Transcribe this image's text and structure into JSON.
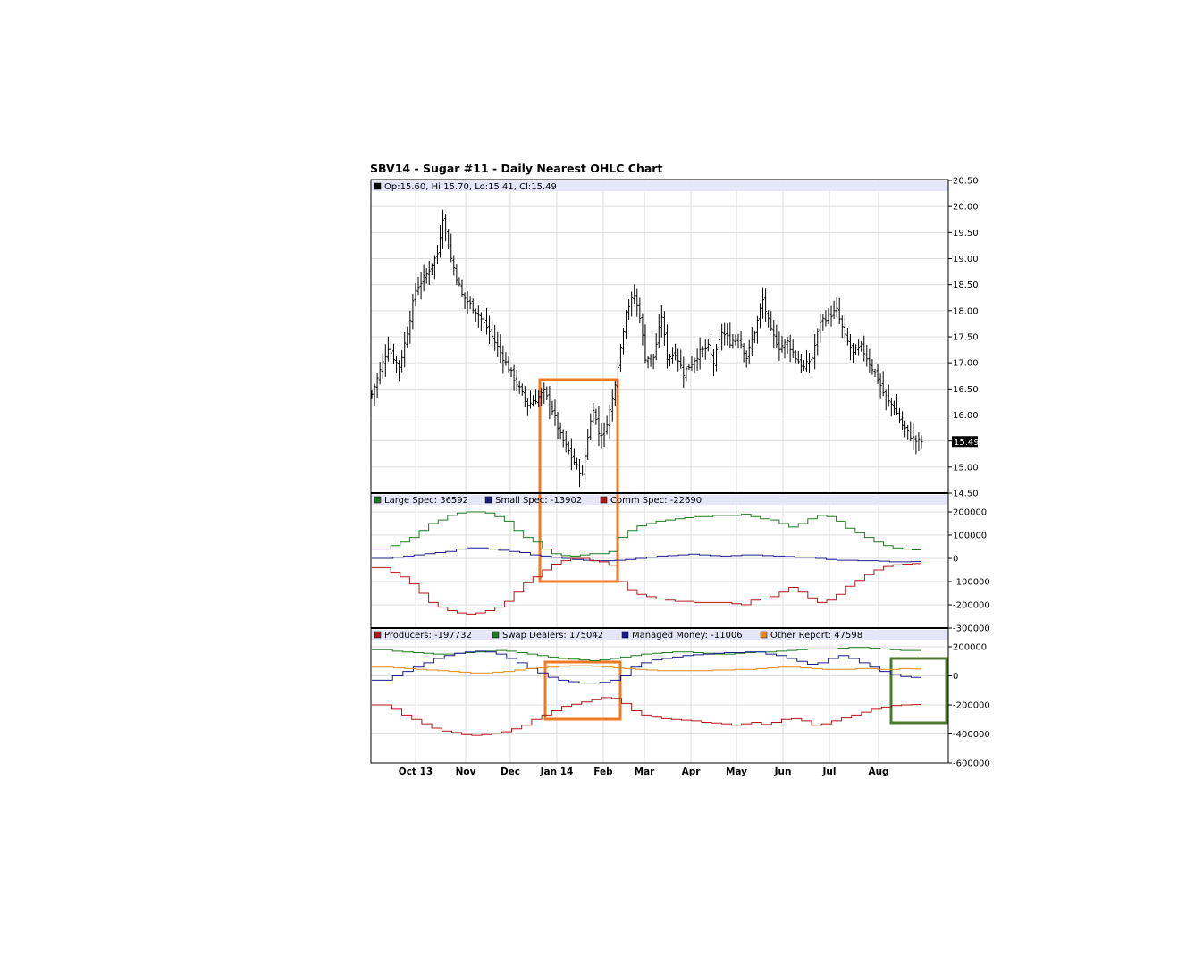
{
  "chart_data": [
    {
      "type": "ohlc",
      "title": "SBV14 - Sugar #11 - Daily Nearest OHLC Chart",
      "legend": [
        {
          "label": "Op:15.60, Hi:15.70, Lo:15.41, Cl:15.49",
          "color": "#000000"
        }
      ],
      "last_value_label": "15.49",
      "y_ticks": [
        "20.50",
        "20.00",
        "19.50",
        "19.00",
        "18.50",
        "18.00",
        "17.50",
        "17.00",
        "16.50",
        "16.00",
        "15.50",
        "15.00",
        "14.50"
      ],
      "ylim": [
        14.5,
        20.5
      ],
      "x_ticks": [
        "Oct 13",
        "Nov",
        "Dec",
        "Jan 14",
        "Feb",
        "Mar",
        "Apr",
        "May",
        "Jun",
        "Jul",
        "Aug"
      ],
      "close_anchors": [
        [
          0,
          16.4
        ],
        [
          6,
          17.3
        ],
        [
          10,
          16.9
        ],
        [
          13,
          17.6
        ],
        [
          16,
          18.4
        ],
        [
          20,
          18.7
        ],
        [
          24,
          19.1
        ],
        [
          26,
          19.8
        ],
        [
          29,
          19.0
        ],
        [
          33,
          18.3
        ],
        [
          38,
          18.0
        ],
        [
          43,
          17.6
        ],
        [
          48,
          17.1
        ],
        [
          53,
          16.6
        ],
        [
          57,
          16.2
        ],
        [
          60,
          16.3
        ],
        [
          63,
          16.45
        ],
        [
          66,
          16.1
        ],
        [
          69,
          15.6
        ],
        [
          72,
          15.3
        ],
        [
          75,
          15.0
        ],
        [
          77,
          14.85
        ],
        [
          79,
          15.6
        ],
        [
          81,
          16.15
        ],
        [
          83,
          15.65
        ],
        [
          85,
          15.65
        ],
        [
          88,
          16.3
        ],
        [
          91,
          17.3
        ],
        [
          93,
          18.0
        ],
        [
          96,
          18.3
        ],
        [
          98,
          17.9
        ],
        [
          100,
          17.1
        ],
        [
          103,
          17.1
        ],
        [
          106,
          17.9
        ],
        [
          108,
          17.1
        ],
        [
          111,
          17.2
        ],
        [
          114,
          16.8
        ],
        [
          117,
          17.0
        ],
        [
          120,
          17.2
        ],
        [
          123,
          17.3
        ],
        [
          125,
          17.0
        ],
        [
          128,
          17.6
        ],
        [
          131,
          17.4
        ],
        [
          134,
          17.5
        ],
        [
          137,
          17.1
        ],
        [
          140,
          17.6
        ],
        [
          143,
          18.2
        ],
        [
          146,
          17.6
        ],
        [
          149,
          17.3
        ],
        [
          152,
          17.4
        ],
        [
          155,
          17.1
        ],
        [
          158,
          16.9
        ],
        [
          161,
          17.1
        ],
        [
          164,
          17.8
        ],
        [
          167,
          17.9
        ],
        [
          170,
          18.0
        ],
        [
          173,
          17.5
        ],
        [
          176,
          17.2
        ],
        [
          179,
          17.3
        ],
        [
          182,
          17.0
        ],
        [
          185,
          16.7
        ],
        [
          188,
          16.3
        ],
        [
          191,
          16.15
        ],
        [
          194,
          15.8
        ],
        [
          197,
          15.6
        ],
        [
          199,
          15.5
        ],
        [
          201,
          15.49
        ]
      ]
    },
    {
      "type": "line",
      "legend": [
        {
          "label": "Large Spec: 36592",
          "color": "#1e7a1e"
        },
        {
          "label": "Small Spec: -13902",
          "color": "#1c1c8a"
        },
        {
          "label": "Comm Spec: -22690",
          "color": "#b01818"
        }
      ],
      "y_ticks": [
        "200000",
        "100000",
        "0",
        "-100000",
        "-200000",
        "-300000"
      ],
      "ylim": [
        -300000,
        200000
      ],
      "series": [
        {
          "name": "Large Spec: 36592",
          "color": "#1e7a1e",
          "values": [
            40000,
            40000,
            55000,
            70000,
            90000,
            120000,
            150000,
            165000,
            185000,
            195000,
            200000,
            200000,
            195000,
            180000,
            160000,
            120000,
            90000,
            70000,
            40000,
            20000,
            12000,
            10000,
            15000,
            20000,
            20000,
            30000,
            90000,
            120000,
            140000,
            150000,
            160000,
            165000,
            170000,
            175000,
            180000,
            180000,
            185000,
            185000,
            185000,
            190000,
            180000,
            170000,
            165000,
            150000,
            135000,
            150000,
            170000,
            185000,
            180000,
            160000,
            130000,
            110000,
            90000,
            70000,
            55000,
            45000,
            40000,
            36592
          ]
        },
        {
          "name": "Small Spec: -13902",
          "color": "#1c1c8a",
          "values": [
            0,
            0,
            5000,
            10000,
            15000,
            20000,
            25000,
            30000,
            40000,
            45000,
            45000,
            40000,
            35000,
            30000,
            25000,
            15000,
            10000,
            5000,
            0,
            -5000,
            -8000,
            -10000,
            -10000,
            -8000,
            -5000,
            0,
            5000,
            10000,
            12000,
            15000,
            18000,
            15000,
            12000,
            10000,
            12000,
            15000,
            15000,
            12000,
            10000,
            8000,
            5000,
            5000,
            0,
            -5000,
            -8000,
            -8000,
            -10000,
            -10000,
            -12000,
            -15000,
            -15000,
            -13902
          ]
        },
        {
          "name": "Comm Spec: -22690",
          "color": "#b01818",
          "values": [
            -40000,
            -40000,
            -60000,
            -80000,
            -110000,
            -150000,
            -190000,
            -210000,
            -225000,
            -235000,
            -240000,
            -235000,
            -225000,
            -210000,
            -185000,
            -145000,
            -105000,
            -80000,
            -50000,
            -25000,
            -10000,
            0,
            0,
            -10000,
            -15000,
            -30000,
            -100000,
            -135000,
            -155000,
            -165000,
            -175000,
            -180000,
            -185000,
            -185000,
            -190000,
            -190000,
            -190000,
            -190000,
            -195000,
            -200000,
            -180000,
            -175000,
            -165000,
            -145000,
            -125000,
            -145000,
            -170000,
            -190000,
            -180000,
            -155000,
            -120000,
            -95000,
            -70000,
            -50000,
            -35000,
            -28000,
            -25000,
            -22690
          ]
        }
      ]
    },
    {
      "type": "line",
      "legend": [
        {
          "label": "Producers: -197732",
          "color": "#b01818"
        },
        {
          "label": "Swap Dealers: 175042",
          "color": "#1e7a1e"
        },
        {
          "label": "Managed Money: -11006",
          "color": "#1c1c8a"
        },
        {
          "label": "Other Report: 47598",
          "color": "#e08a1a"
        }
      ],
      "y_ticks": [
        "200000",
        "0",
        "-200000",
        "-400000",
        "-600000"
      ],
      "ylim": [
        -600000,
        200000
      ],
      "series": [
        {
          "name": "Producers: -197732",
          "color": "#b01818",
          "values": [
            -200000,
            -200000,
            -230000,
            -270000,
            -300000,
            -330000,
            -360000,
            -380000,
            -390000,
            -405000,
            -410000,
            -405000,
            -395000,
            -385000,
            -365000,
            -340000,
            -300000,
            -270000,
            -240000,
            -210000,
            -195000,
            -180000,
            -165000,
            -150000,
            -155000,
            -190000,
            -240000,
            -270000,
            -285000,
            -295000,
            -300000,
            -305000,
            -310000,
            -320000,
            -325000,
            -330000,
            -340000,
            -330000,
            -320000,
            -335000,
            -320000,
            -300000,
            -295000,
            -310000,
            -340000,
            -330000,
            -310000,
            -290000,
            -270000,
            -250000,
            -230000,
            -215000,
            -205000,
            -200000,
            -197732
          ]
        },
        {
          "name": "Swap Dealers: 175042",
          "color": "#1e7a1e",
          "values": [
            180000,
            180000,
            170000,
            165000,
            160000,
            155000,
            150000,
            150000,
            155000,
            160000,
            165000,
            170000,
            175000,
            170000,
            160000,
            150000,
            140000,
            130000,
            120000,
            115000,
            110000,
            105000,
            110000,
            120000,
            130000,
            140000,
            150000,
            155000,
            160000,
            165000,
            165000,
            160000,
            155000,
            150000,
            150000,
            155000,
            160000,
            165000,
            165000,
            170000,
            175000,
            180000,
            185000,
            185000,
            185000,
            190000,
            195000,
            195000,
            190000,
            185000,
            180000,
            175000,
            175042
          ]
        },
        {
          "name": "Managed Money: -11006",
          "color": "#1c1c8a",
          "values": [
            -30000,
            -30000,
            0,
            30000,
            60000,
            90000,
            120000,
            140000,
            155000,
            165000,
            170000,
            165000,
            150000,
            120000,
            90000,
            50000,
            20000,
            -10000,
            -30000,
            -40000,
            -50000,
            -50000,
            -45000,
            -30000,
            0,
            60000,
            90000,
            110000,
            120000,
            130000,
            140000,
            145000,
            150000,
            155000,
            160000,
            160000,
            165000,
            165000,
            150000,
            140000,
            120000,
            100000,
            80000,
            90000,
            120000,
            140000,
            120000,
            90000,
            60000,
            30000,
            10000,
            -5000,
            -11006
          ]
        },
        {
          "name": "Other Report: 47598",
          "color": "#e08a1a",
          "values": [
            60000,
            60000,
            55000,
            50000,
            45000,
            40000,
            35000,
            30000,
            25000,
            20000,
            20000,
            25000,
            30000,
            40000,
            50000,
            55000,
            60000,
            65000,
            70000,
            70000,
            65000,
            60000,
            55000,
            50000,
            45000,
            40000,
            35000,
            35000,
            35000,
            35000,
            35000,
            40000,
            40000,
            45000,
            45000,
            50000,
            55000,
            60000,
            60000,
            55000,
            50000,
            45000,
            45000,
            45000,
            50000,
            50000,
            45000,
            45000,
            50000,
            47598
          ]
        }
      ]
    }
  ]
}
